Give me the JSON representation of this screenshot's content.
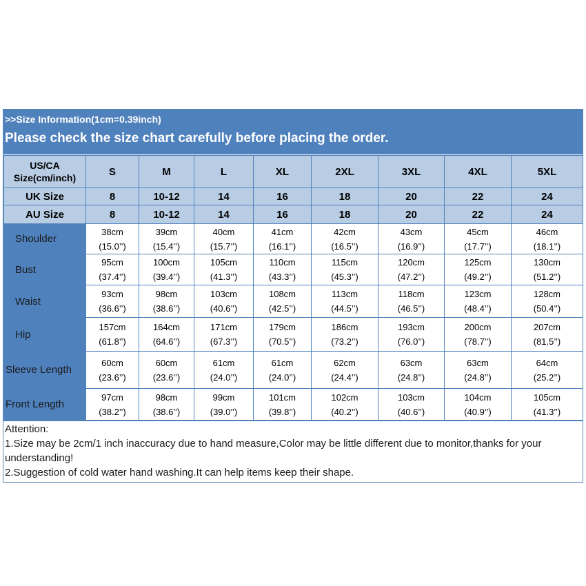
{
  "header": {
    "subtitle": ">>Size Information(1cm=0.39inch)",
    "title": "Please check the size chart carefully before placing the order."
  },
  "table": {
    "size_header_label_line1": "US/CA",
    "size_header_label_line2": "Size(cm/inch)",
    "sizes": [
      "S",
      "M",
      "L",
      "XL",
      "2XL",
      "3XL",
      "4XL",
      "5XL"
    ],
    "uk_label": "UK Size",
    "uk": [
      "8",
      "10-12",
      "14",
      "16",
      "18",
      "20",
      "22",
      "24"
    ],
    "au_label": "AU Size",
    "au": [
      "8",
      "10-12",
      "14",
      "16",
      "18",
      "20",
      "22",
      "24"
    ],
    "rows": [
      {
        "label": "Shoulder",
        "cm": [
          "38cm",
          "39cm",
          "40cm",
          "41cm",
          "42cm",
          "43cm",
          "45cm",
          "46cm"
        ],
        "inch": [
          "(15.0’’)",
          "(15.4’’)",
          "(15.7’’)",
          "(16.1’’)",
          "(16.5’’)",
          "(16.9’’)",
          "(17.7’’)",
          "(18.1’’)"
        ]
      },
      {
        "label": "Bust",
        "cm": [
          "95cm",
          "100cm",
          "105cm",
          "110cm",
          "115cm",
          "120cm",
          "125cm",
          "130cm"
        ],
        "inch": [
          "(37.4’’)",
          "(39.4’’)",
          "(41.3’’)",
          "(43.3’’)",
          "(45.3’’)",
          "(47.2’’)",
          "(49.2’’)",
          "(51.2’’)"
        ]
      },
      {
        "label": "Waist",
        "cm": [
          "93cm",
          "98cm",
          "103cm",
          "108cm",
          "113cm",
          "118cm",
          "123cm",
          "128cm"
        ],
        "inch": [
          "(36.6’’)",
          "(38.6’’)",
          "(40.6’’)",
          "(42.5’’)",
          "(44.5’’)",
          "(46.5’’)",
          "(48.4’’)",
          "(50.4’’)"
        ]
      },
      {
        "label": "Hip",
        "cm": [
          "157cm",
          "164cm",
          "171cm",
          "179cm",
          "186cm",
          "193cm",
          "200cm",
          "207cm"
        ],
        "inch": [
          "(61.8’’)",
          "(64.6’’)",
          "(67.3’’)",
          "(70.5’’)",
          "(73.2’’)",
          "(76.0’’)",
          "(78.7’’)",
          "(81.5’’)"
        ]
      },
      {
        "label": "Sleeve Length",
        "cm": [
          "60cm",
          "60cm",
          "61cm",
          "61cm",
          "62cm",
          "63cm",
          "63cm",
          "64cm"
        ],
        "inch": [
          "(23.6’’)",
          "(23.6’’)",
          "(24.0’’)",
          "(24.0’’)",
          "(24.4’’)",
          "(24.8’’)",
          "(24.8’’)",
          "(25.2’’)"
        ]
      },
      {
        "label": "Front Length",
        "cm": [
          "97cm",
          "98cm",
          "99cm",
          "101cm",
          "102cm",
          "103cm",
          "104cm",
          "105cm"
        ],
        "inch": [
          "(38.2’’)",
          "(38.6’’)",
          "(39.0’’)",
          "(39.8’’)",
          "(40.2’’)",
          "(40.6’’)",
          "(40.9’’)",
          "(41.3’’)"
        ]
      }
    ]
  },
  "notes": {
    "heading": "Attention:",
    "line1": "1.Size may be 2cm/1 inch inaccuracy due to hand measure,Color may be little different due to monitor,thanks for your understanding!",
    "line2": "2.Suggestion of cold water hand washing.It can help items keep their shape."
  },
  "colors": {
    "banner": "#4f81bd",
    "header_cells": "#b8cce4",
    "label_cells": "#4f81bd"
  }
}
